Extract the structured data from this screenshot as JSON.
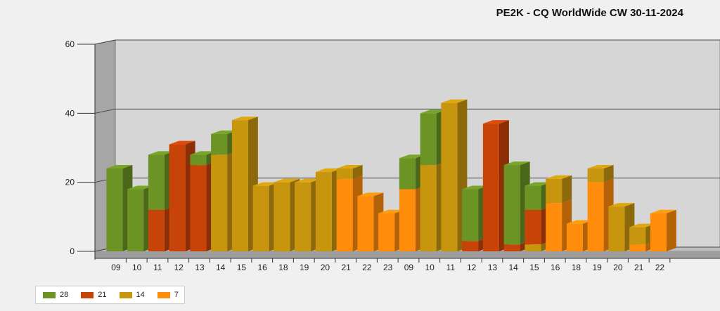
{
  "chart_data": {
    "type": "bar",
    "stacked": true,
    "three_d": true,
    "title": "PE2K - CQ WorldWide CW 30-11-2024",
    "xlabel": "",
    "ylabel": "",
    "ylim": [
      0,
      60
    ],
    "yticks": [
      0,
      20,
      40,
      60
    ],
    "grid": true,
    "legend_position": "bottom-left",
    "categories": [
      "09",
      "10",
      "11",
      "12",
      "13",
      "14",
      "15",
      "16",
      "18",
      "19",
      "20",
      "21",
      "22",
      "23",
      "09",
      "10",
      "11",
      "12",
      "13",
      "14",
      "15",
      "16",
      "18",
      "19",
      "20",
      "21",
      "22"
    ],
    "series": [
      {
        "name": "7",
        "color": "#ff8c0a",
        "values": [
          0,
          0,
          0,
          0,
          0,
          0,
          0,
          0,
          0,
          0,
          0,
          21,
          16,
          11,
          18,
          0,
          0,
          0,
          0,
          0,
          0,
          14,
          8,
          20,
          0,
          2,
          11
        ]
      },
      {
        "name": "14",
        "color": "#c8960e",
        "values": [
          0,
          0,
          0,
          0,
          0,
          28,
          38,
          19,
          20,
          20,
          23,
          3,
          0,
          0,
          0,
          25,
          43,
          0,
          0,
          0,
          2,
          7,
          0,
          4,
          13,
          5,
          0
        ]
      },
      {
        "name": "21",
        "color": "#c84308",
        "values": [
          0,
          0,
          12,
          31,
          25,
          0,
          0,
          0,
          0,
          0,
          0,
          0,
          0,
          0,
          0,
          0,
          0,
          3,
          37,
          2,
          10,
          0,
          0,
          0,
          0,
          0,
          0
        ]
      },
      {
        "name": "28",
        "color": "#6b9425",
        "values": [
          24,
          18,
          16,
          0,
          3,
          6,
          0,
          0,
          0,
          0,
          0,
          0,
          0,
          0,
          9,
          15,
          0,
          15,
          0,
          23,
          7,
          0,
          0,
          0,
          0,
          0,
          0
        ]
      }
    ],
    "legend_order": [
      "28",
      "21",
      "14",
      "7"
    ]
  }
}
